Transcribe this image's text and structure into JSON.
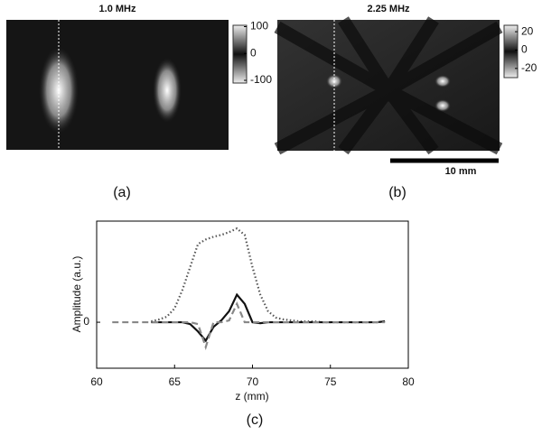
{
  "chart_data": [
    {
      "type": "heatmap",
      "title": "1.0 MHz",
      "panel_label": "(a)",
      "colorbar": {
        "lim": [
          -110,
          105
        ],
        "ticks": [
          100,
          0,
          -100
        ]
      }
    },
    {
      "type": "heatmap",
      "title": "2.25 MHz",
      "panel_label": "(b)",
      "scale_bar": "10 mm",
      "colorbar": {
        "lim": [
          -30,
          27
        ],
        "ticks": [
          20,
          0,
          -20
        ]
      }
    },
    {
      "type": "line",
      "panel_label": "(c)",
      "xlabel": "z (mm)",
      "ylabel": "Amplitude (a.u.)",
      "xlim": [
        60,
        80
      ],
      "xticks": [
        60,
        65,
        70,
        75,
        80
      ],
      "ylim": [
        -0.5,
        1.1
      ],
      "yticks": [
        0
      ],
      "x": [
        61,
        61.5,
        62,
        62.5,
        63,
        63.5,
        64,
        64.5,
        65,
        65.5,
        66,
        66.5,
        67,
        67.5,
        68,
        68.5,
        69,
        69.5,
        70,
        70.5,
        71,
        71.5,
        72,
        72.5,
        73,
        73.5,
        74,
        74.5,
        75,
        75.5,
        76,
        76.5,
        77,
        77.5,
        78,
        78.5
      ],
      "series": [
        {
          "color": "#555555",
          "style": "dotted",
          "values": [
            null,
            null,
            null,
            null,
            null,
            0.01,
            0.03,
            0.06,
            0.15,
            0.35,
            0.6,
            0.85,
            0.9,
            0.93,
            0.95,
            0.98,
            1.02,
            0.95,
            0.6,
            0.3,
            0.12,
            0.05,
            0.03,
            0.02,
            0.01,
            0.01,
            0.01,
            0,
            0,
            0,
            0,
            0,
            0,
            0,
            0,
            0.01
          ]
        },
        {
          "color": "#111111",
          "style": "solid",
          "values": [
            null,
            null,
            null,
            null,
            null,
            0,
            0,
            0,
            0,
            0,
            -0.02,
            -0.1,
            -0.2,
            -0.05,
            0.02,
            0.12,
            0.3,
            0.2,
            0,
            -0.01,
            0,
            0,
            0,
            0,
            0,
            0,
            0,
            0,
            0,
            0,
            0,
            0,
            0,
            0,
            0,
            0.01
          ]
        },
        {
          "color": "#888888",
          "style": "dashed",
          "values": [
            0,
            0,
            0,
            0,
            0,
            0,
            0,
            0,
            0,
            0,
            0,
            -0.02,
            -0.27,
            0,
            0,
            0.02,
            0.2,
            0,
            0,
            0,
            0,
            0,
            0,
            0,
            0,
            0,
            0,
            0,
            0,
            0,
            0,
            0,
            0,
            0,
            0,
            0
          ]
        }
      ]
    }
  ]
}
